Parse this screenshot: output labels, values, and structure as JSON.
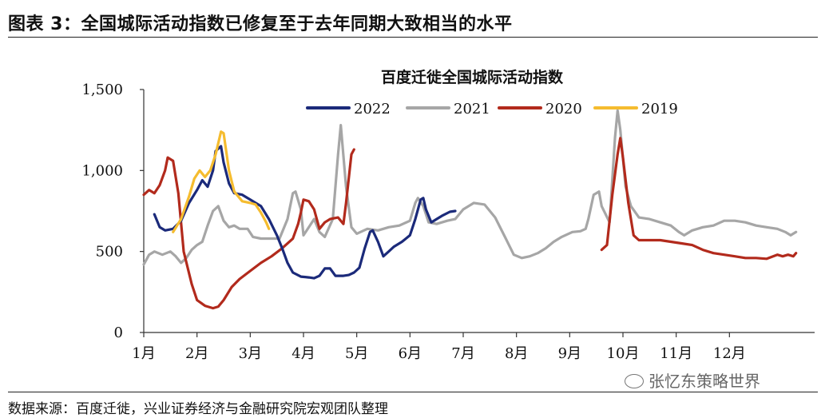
{
  "figure_title": "图表 3：全国城际活动指数已修复至于去年同期大致相当的水平",
  "source": "数据来源：百度迁徙，兴业证券经济与金融研究院宏观团队整理",
  "watermark": "张忆东策略世界",
  "colors": {
    "2022": "#1b2a7a",
    "2021": "#a6a6a6",
    "2020": "#b22a1c",
    "2019": "#f5bc2f"
  },
  "chart_data": {
    "type": "line",
    "title": "百度迁徙全国城际活动指数",
    "xlabel": "",
    "ylabel": "",
    "x_unit": "month (1 = start of Jan, 13 = end of Dec)",
    "xlim": [
      1,
      13.6
    ],
    "ylim": [
      0,
      1500
    ],
    "yticks": [
      0,
      500,
      1000,
      1500
    ],
    "ytick_labels": [
      "0",
      "500",
      "1,000",
      "1,500"
    ],
    "xticks": [
      1,
      2,
      3,
      4,
      5,
      6,
      7,
      8,
      9,
      10,
      11,
      12
    ],
    "xtick_labels": [
      "1月",
      "2月",
      "3月",
      "4月",
      "5月",
      "6月",
      "7月",
      "8月",
      "9月",
      "10月",
      "11月",
      "12月"
    ],
    "legend_position": "top",
    "grid": false,
    "series": [
      {
        "name": "2022",
        "points": [
          [
            1.2,
            730
          ],
          [
            1.3,
            650
          ],
          [
            1.4,
            630
          ],
          [
            1.55,
            640
          ],
          [
            1.7,
            690
          ],
          [
            1.85,
            800
          ],
          [
            2.0,
            880
          ],
          [
            2.1,
            940
          ],
          [
            2.2,
            900
          ],
          [
            2.3,
            1000
          ],
          [
            2.35,
            1120
          ],
          [
            2.45,
            1150
          ],
          [
            2.5,
            1050
          ],
          [
            2.6,
            920
          ],
          [
            2.7,
            860
          ],
          [
            2.85,
            850
          ],
          [
            3.0,
            820
          ],
          [
            3.2,
            780
          ],
          [
            3.35,
            700
          ],
          [
            3.5,
            600
          ],
          [
            3.6,
            520
          ],
          [
            3.7,
            430
          ],
          [
            3.8,
            370
          ],
          [
            3.95,
            345
          ],
          [
            4.1,
            340
          ],
          [
            4.2,
            335
          ],
          [
            4.3,
            350
          ],
          [
            4.4,
            395
          ],
          [
            4.5,
            395
          ],
          [
            4.6,
            350
          ],
          [
            4.75,
            350
          ],
          [
            4.85,
            355
          ],
          [
            4.95,
            370
          ],
          [
            5.05,
            400
          ],
          [
            5.15,
            520
          ],
          [
            5.25,
            620
          ],
          [
            5.3,
            630
          ],
          [
            5.4,
            560
          ],
          [
            5.5,
            470
          ],
          [
            5.6,
            500
          ],
          [
            5.7,
            530
          ],
          [
            5.85,
            560
          ],
          [
            6.0,
            600
          ],
          [
            6.1,
            700
          ],
          [
            6.2,
            820
          ],
          [
            6.25,
            830
          ],
          [
            6.3,
            760
          ],
          [
            6.4,
            680
          ],
          [
            6.5,
            700
          ],
          [
            6.6,
            720
          ],
          [
            6.75,
            745
          ],
          [
            6.85,
            750
          ]
        ]
      },
      {
        "name": "2021",
        "points": [
          [
            1.0,
            420
          ],
          [
            1.1,
            480
          ],
          [
            1.2,
            500
          ],
          [
            1.35,
            480
          ],
          [
            1.5,
            500
          ],
          [
            1.6,
            470
          ],
          [
            1.7,
            430
          ],
          [
            1.8,
            460
          ],
          [
            1.9,
            510
          ],
          [
            2.0,
            540
          ],
          [
            2.1,
            560
          ],
          [
            2.2,
            660
          ],
          [
            2.3,
            750
          ],
          [
            2.4,
            780
          ],
          [
            2.5,
            690
          ],
          [
            2.6,
            650
          ],
          [
            2.7,
            660
          ],
          [
            2.8,
            640
          ],
          [
            2.95,
            640
          ],
          [
            3.05,
            590
          ],
          [
            3.2,
            580
          ],
          [
            3.4,
            580
          ],
          [
            3.55,
            580
          ],
          [
            3.7,
            700
          ],
          [
            3.8,
            860
          ],
          [
            3.85,
            870
          ],
          [
            3.95,
            760
          ],
          [
            4.0,
            600
          ],
          [
            4.1,
            650
          ],
          [
            4.2,
            700
          ],
          [
            4.3,
            620
          ],
          [
            4.4,
            590
          ],
          [
            4.55,
            700
          ],
          [
            4.65,
            1100
          ],
          [
            4.7,
            1280
          ],
          [
            4.8,
            900
          ],
          [
            4.9,
            650
          ],
          [
            5.0,
            610
          ],
          [
            5.2,
            640
          ],
          [
            5.4,
            630
          ],
          [
            5.6,
            650
          ],
          [
            5.8,
            660
          ],
          [
            6.0,
            690
          ],
          [
            6.1,
            800
          ],
          [
            6.15,
            830
          ],
          [
            6.25,
            780
          ],
          [
            6.35,
            680
          ],
          [
            6.5,
            670
          ],
          [
            6.7,
            690
          ],
          [
            6.85,
            700
          ],
          [
            7.0,
            760
          ],
          [
            7.2,
            800
          ],
          [
            7.4,
            790
          ],
          [
            7.6,
            710
          ],
          [
            7.8,
            580
          ],
          [
            7.95,
            480
          ],
          [
            8.1,
            460
          ],
          [
            8.25,
            470
          ],
          [
            8.4,
            490
          ],
          [
            8.55,
            520
          ],
          [
            8.7,
            560
          ],
          [
            8.85,
            590
          ],
          [
            9.05,
            620
          ],
          [
            9.2,
            625
          ],
          [
            9.3,
            640
          ],
          [
            9.35,
            700
          ],
          [
            9.45,
            850
          ],
          [
            9.55,
            870
          ],
          [
            9.6,
            780
          ],
          [
            9.75,
            680
          ],
          [
            9.85,
            1200
          ],
          [
            9.9,
            1370
          ],
          [
            9.95,
            1250
          ],
          [
            10.05,
            900
          ],
          [
            10.15,
            780
          ],
          [
            10.3,
            710
          ],
          [
            10.5,
            700
          ],
          [
            10.7,
            680
          ],
          [
            10.9,
            660
          ],
          [
            11.05,
            620
          ],
          [
            11.15,
            600
          ],
          [
            11.3,
            630
          ],
          [
            11.5,
            650
          ],
          [
            11.7,
            660
          ],
          [
            11.9,
            690
          ],
          [
            12.1,
            690
          ],
          [
            12.3,
            680
          ],
          [
            12.5,
            660
          ],
          [
            12.7,
            650
          ],
          [
            12.9,
            640
          ],
          [
            13.05,
            620
          ],
          [
            13.15,
            600
          ],
          [
            13.25,
            620
          ]
        ]
      },
      {
        "name": "2020",
        "points": [
          [
            1.0,
            850
          ],
          [
            1.1,
            880
          ],
          [
            1.2,
            860
          ],
          [
            1.3,
            910
          ],
          [
            1.4,
            1000
          ],
          [
            1.45,
            1080
          ],
          [
            1.55,
            1060
          ],
          [
            1.65,
            860
          ],
          [
            1.75,
            500
          ],
          [
            1.9,
            300
          ],
          [
            2.0,
            200
          ],
          [
            2.15,
            165
          ],
          [
            2.3,
            150
          ],
          [
            2.4,
            160
          ],
          [
            2.5,
            200
          ],
          [
            2.65,
            280
          ],
          [
            2.8,
            330
          ],
          [
            3.0,
            380
          ],
          [
            3.2,
            430
          ],
          [
            3.4,
            470
          ],
          [
            3.6,
            520
          ],
          [
            3.8,
            580
          ],
          [
            3.9,
            670
          ],
          [
            3.95,
            740
          ],
          [
            4.0,
            820
          ],
          [
            4.1,
            810
          ],
          [
            4.2,
            760
          ],
          [
            4.3,
            640
          ],
          [
            4.4,
            680
          ],
          [
            4.5,
            700
          ],
          [
            4.65,
            710
          ],
          [
            4.75,
            670
          ],
          [
            4.8,
            800
          ],
          [
            4.9,
            1100
          ],
          [
            4.95,
            1130
          ],
          [
            9.6,
            510
          ],
          [
            9.7,
            540
          ],
          [
            9.8,
            850
          ],
          [
            9.9,
            1100
          ],
          [
            9.95,
            1200
          ],
          [
            10.0,
            1080
          ],
          [
            10.1,
            800
          ],
          [
            10.2,
            600
          ],
          [
            10.3,
            570
          ],
          [
            10.5,
            570
          ],
          [
            10.7,
            570
          ],
          [
            10.9,
            560
          ],
          [
            11.1,
            550
          ],
          [
            11.3,
            540
          ],
          [
            11.5,
            510
          ],
          [
            11.7,
            490
          ],
          [
            11.9,
            480
          ],
          [
            12.1,
            470
          ],
          [
            12.3,
            460
          ],
          [
            12.5,
            460
          ],
          [
            12.7,
            455
          ],
          [
            12.9,
            480
          ],
          [
            13.0,
            470
          ],
          [
            13.1,
            480
          ],
          [
            13.2,
            470
          ],
          [
            13.25,
            490
          ]
        ]
      },
      {
        "name": "2019",
        "points": [
          [
            1.55,
            620
          ],
          [
            1.7,
            700
          ],
          [
            1.85,
            840
          ],
          [
            1.95,
            950
          ],
          [
            2.05,
            1000
          ],
          [
            2.15,
            960
          ],
          [
            2.25,
            1000
          ],
          [
            2.35,
            1100
          ],
          [
            2.45,
            1240
          ],
          [
            2.5,
            1230
          ],
          [
            2.6,
            1000
          ],
          [
            2.7,
            870
          ],
          [
            2.85,
            810
          ],
          [
            3.0,
            800
          ],
          [
            3.1,
            790
          ],
          [
            3.2,
            740
          ],
          [
            3.3,
            680
          ],
          [
            3.35,
            640
          ]
        ]
      }
    ]
  }
}
